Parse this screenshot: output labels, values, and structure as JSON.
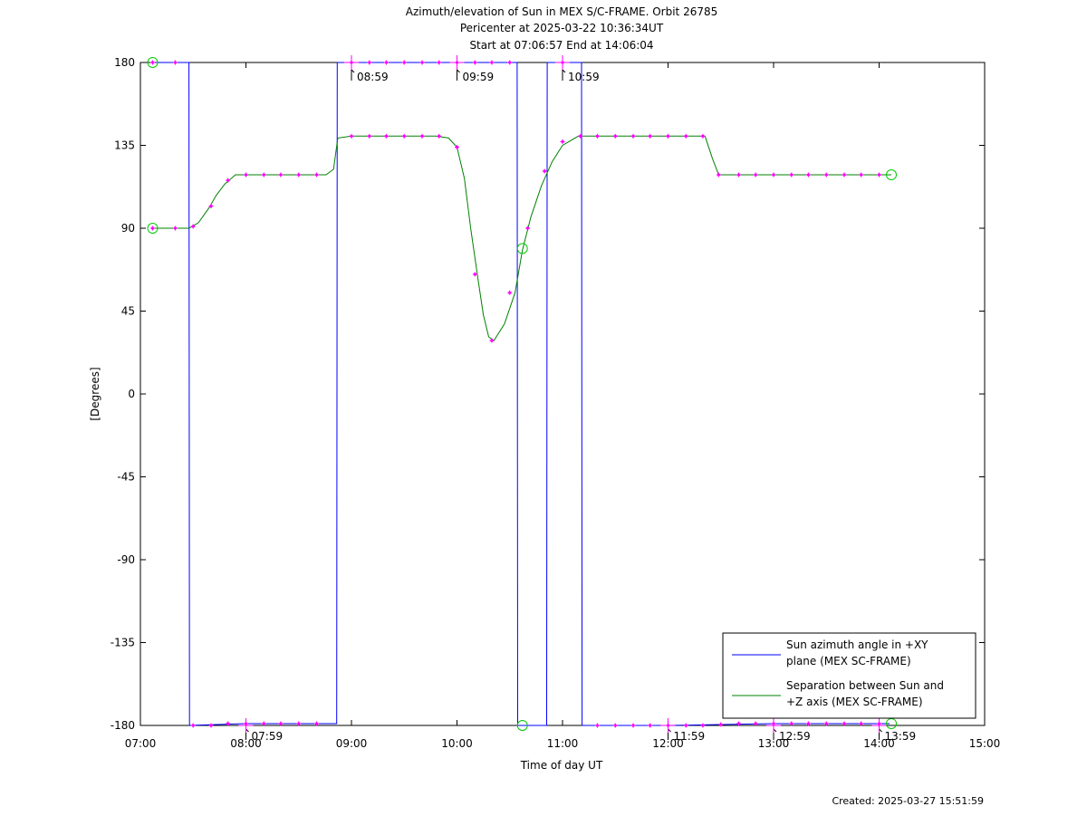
{
  "title_lines": [
    "Azimuth/elevation of Sun in MEX S/C-FRAME.  Orbit 26785",
    "Pericenter at 2025-03-22 10:36:34UT",
    "Start at 07:06:57 End at 14:06:04"
  ],
  "created": "Created: 2025-03-27 15:51:59",
  "chart_data": {
    "type": "line",
    "xlabel": "Time of day UT",
    "ylabel": "[Degrees]",
    "xlim": [
      7.0,
      15.0
    ],
    "ylim": [
      -180,
      180
    ],
    "xticks": [
      {
        "v": 7,
        "label": "07:00"
      },
      {
        "v": 8,
        "label": "08:00"
      },
      {
        "v": 9,
        "label": "09:00"
      },
      {
        "v": 10,
        "label": "10:00"
      },
      {
        "v": 11,
        "label": "11:00"
      },
      {
        "v": 12,
        "label": "12:00"
      },
      {
        "v": 13,
        "label": "13:00"
      },
      {
        "v": 14,
        "label": "14:00"
      },
      {
        "v": 15,
        "label": "15:00"
      }
    ],
    "yticks": [
      {
        "v": 180,
        "label": "180"
      },
      {
        "v": 135,
        "label": "135"
      },
      {
        "v": 90,
        "label": "90"
      },
      {
        "v": 45,
        "label": "45"
      },
      {
        "v": 0,
        "label": "0"
      },
      {
        "v": -45,
        "label": "-45"
      },
      {
        "v": -90,
        "label": "-90"
      },
      {
        "v": -135,
        "label": "-135"
      },
      {
        "v": -180,
        "label": "-180"
      }
    ],
    "grid": false,
    "legend_position": "bottom-right",
    "series": [
      {
        "name": "Sun azimuth angle in +XY plane (MEX SC-FRAME)",
        "legend_lines": [
          "Sun azimuth angle in +XY",
          "plane (MEX SC-FRAME)"
        ],
        "color": "#0000ff",
        "x": [
          7.116,
          7.46,
          7.465,
          8.0,
          8.5,
          8.84,
          8.86,
          8.865,
          9.5,
          10.0,
          10.57,
          10.575,
          10.85,
          10.855,
          11.0,
          11.18,
          11.185,
          12.0,
          12.5,
          13.0,
          13.5,
          14.1
        ],
        "y": [
          180,
          180,
          -180,
          -179,
          -179,
          -179,
          -179,
          180,
          180,
          180,
          180,
          -180,
          -180,
          180,
          180,
          180,
          -180,
          -180,
          -179.5,
          -179,
          -179,
          -179
        ]
      },
      {
        "name": "Separation between Sun and +Z axis (MEX SC-FRAME)",
        "legend_lines": [
          "Separation between Sun and",
          "+Z axis (MEX SC-FRAME)"
        ],
        "color": "#008000",
        "x": [
          7.116,
          7.38,
          7.46,
          7.55,
          7.65,
          7.72,
          7.8,
          7.9,
          8.0,
          8.3,
          8.6,
          8.76,
          8.83,
          8.87,
          9.0,
          9.5,
          9.8,
          9.92,
          10.0,
          10.07,
          10.13,
          10.2,
          10.25,
          10.3,
          10.35,
          10.45,
          10.55,
          10.62,
          10.7,
          10.8,
          10.9,
          11.0,
          11.15,
          11.5,
          12.0,
          12.35,
          12.42,
          12.48,
          13.0,
          13.5,
          14.116
        ],
        "y": [
          90,
          90,
          90,
          93,
          101,
          108,
          114,
          119,
          119,
          119,
          119,
          119,
          122,
          139,
          140,
          140,
          140,
          139,
          134,
          117,
          90,
          62,
          43,
          31,
          29,
          38,
          55,
          78,
          96,
          113,
          126,
          135,
          140,
          140,
          140,
          140,
          128,
          119,
          119,
          119,
          119
        ]
      }
    ],
    "annotations": [
      {
        "x": 8.0,
        "y": -180,
        "text": "07:59"
      },
      {
        "x": 9.0,
        "y": 180,
        "text": "08:59"
      },
      {
        "x": 10.0,
        "y": 180,
        "text": "09:59"
      },
      {
        "x": 11.0,
        "y": 180,
        "text": "10:59"
      },
      {
        "x": 12.0,
        "y": -180,
        "text": "11:59"
      },
      {
        "x": 13.0,
        "y": -180,
        "text": "12:59"
      },
      {
        "x": 14.0,
        "y": -180,
        "text": "13:59"
      }
    ],
    "magenta_markers": [
      {
        "x": 7.116,
        "y": 180
      },
      {
        "x": 7.33,
        "y": 180
      },
      {
        "x": 7.116,
        "y": 90
      },
      {
        "x": 7.33,
        "y": 90
      },
      {
        "x": 7.5,
        "y": 91
      },
      {
        "x": 7.67,
        "y": 102
      },
      {
        "x": 7.83,
        "y": 116
      },
      {
        "x": 8.0,
        "y": 119
      },
      {
        "x": 8.17,
        "y": 119
      },
      {
        "x": 8.33,
        "y": 119
      },
      {
        "x": 8.5,
        "y": 119
      },
      {
        "x": 8.67,
        "y": 119
      },
      {
        "x": 9.0,
        "y": 140
      },
      {
        "x": 9.17,
        "y": 140
      },
      {
        "x": 9.33,
        "y": 140
      },
      {
        "x": 9.5,
        "y": 140
      },
      {
        "x": 9.67,
        "y": 140
      },
      {
        "x": 9.83,
        "y": 140
      },
      {
        "x": 10.0,
        "y": 134
      },
      {
        "x": 10.17,
        "y": 65
      },
      {
        "x": 10.33,
        "y": 29
      },
      {
        "x": 10.5,
        "y": 55
      },
      {
        "x": 10.67,
        "y": 90
      },
      {
        "x": 10.83,
        "y": 121
      },
      {
        "x": 11.0,
        "y": 137
      },
      {
        "x": 11.17,
        "y": 140
      },
      {
        "x": 11.33,
        "y": 140
      },
      {
        "x": 11.5,
        "y": 140
      },
      {
        "x": 11.67,
        "y": 140
      },
      {
        "x": 11.83,
        "y": 140
      },
      {
        "x": 12.0,
        "y": 140
      },
      {
        "x": 12.17,
        "y": 140
      },
      {
        "x": 12.33,
        "y": 140
      },
      {
        "x": 12.48,
        "y": 119
      },
      {
        "x": 12.67,
        "y": 119
      },
      {
        "x": 12.83,
        "y": 119
      },
      {
        "x": 13.0,
        "y": 119
      },
      {
        "x": 13.17,
        "y": 119
      },
      {
        "x": 13.33,
        "y": 119
      },
      {
        "x": 13.5,
        "y": 119
      },
      {
        "x": 13.67,
        "y": 119
      },
      {
        "x": 13.83,
        "y": 119
      },
      {
        "x": 14.0,
        "y": 119
      },
      {
        "x": 7.5,
        "y": -180
      },
      {
        "x": 7.67,
        "y": -180
      },
      {
        "x": 7.83,
        "y": -179
      },
      {
        "x": 8.0,
        "y": -179
      },
      {
        "x": 8.17,
        "y": -179
      },
      {
        "x": 8.33,
        "y": -179
      },
      {
        "x": 8.5,
        "y": -179
      },
      {
        "x": 8.67,
        "y": -179
      },
      {
        "x": 9.0,
        "y": 180
      },
      {
        "x": 9.17,
        "y": 180
      },
      {
        "x": 9.33,
        "y": 180
      },
      {
        "x": 9.5,
        "y": 180
      },
      {
        "x": 9.67,
        "y": 180
      },
      {
        "x": 9.83,
        "y": 180
      },
      {
        "x": 10.0,
        "y": 180
      },
      {
        "x": 10.17,
        "y": 180
      },
      {
        "x": 10.33,
        "y": 180
      },
      {
        "x": 10.5,
        "y": 180
      },
      {
        "x": 11.0,
        "y": 180
      },
      {
        "x": 11.33,
        "y": -180
      },
      {
        "x": 11.5,
        "y": -180
      },
      {
        "x": 11.67,
        "y": -180
      },
      {
        "x": 11.83,
        "y": -180
      },
      {
        "x": 12.0,
        "y": -180
      },
      {
        "x": 12.17,
        "y": -180
      },
      {
        "x": 12.33,
        "y": -180
      },
      {
        "x": 12.5,
        "y": -179.5
      },
      {
        "x": 12.67,
        "y": -179
      },
      {
        "x": 12.83,
        "y": -179
      },
      {
        "x": 13.0,
        "y": -179
      },
      {
        "x": 13.17,
        "y": -179
      },
      {
        "x": 13.33,
        "y": -179
      },
      {
        "x": 13.5,
        "y": -179
      },
      {
        "x": 13.67,
        "y": -179
      },
      {
        "x": 13.83,
        "y": -179
      },
      {
        "x": 14.0,
        "y": -179
      }
    ],
    "green_circles": [
      {
        "x": 7.116,
        "y": 180
      },
      {
        "x": 7.116,
        "y": 90
      },
      {
        "x": 10.62,
        "y": 79
      },
      {
        "x": 10.62,
        "y": -180
      },
      {
        "x": 14.116,
        "y": 119
      },
      {
        "x": 14.116,
        "y": -179
      }
    ]
  }
}
